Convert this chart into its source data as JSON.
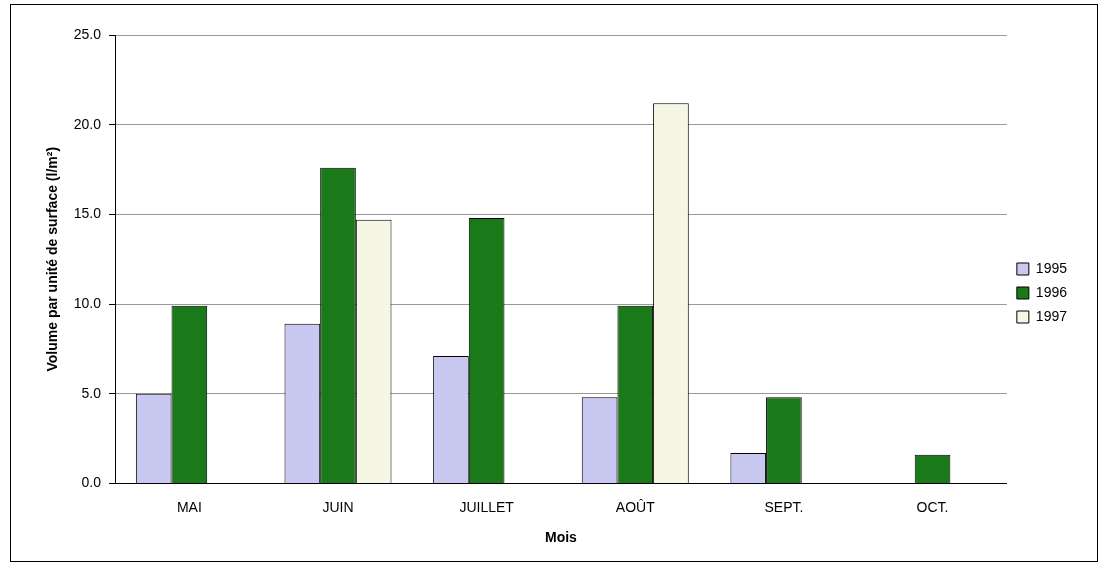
{
  "chart_data": {
    "type": "bar",
    "xlabel": "Mois",
    "ylabel": "Volume par unité de surface (l/m²)",
    "categories": [
      "MAI",
      "JUIN",
      "JUILLET",
      "AOÛT",
      "SEPT.",
      "OCT."
    ],
    "series": [
      {
        "name": "1995",
        "color": "#c8c8f0",
        "values": [
          5.0,
          8.9,
          7.1,
          4.8,
          1.7,
          null
        ]
      },
      {
        "name": "1996",
        "color": "#1a7a1a",
        "values": [
          9.9,
          17.6,
          14.8,
          9.9,
          4.8,
          1.6
        ]
      },
      {
        "name": "1997",
        "color": "#f6f6e4",
        "values": [
          null,
          14.7,
          null,
          21.2,
          null,
          null
        ]
      }
    ],
    "ylim": [
      0,
      25
    ],
    "yticks": [
      {
        "value": 0,
        "label": "0.0"
      },
      {
        "value": 5,
        "label": "5.0"
      },
      {
        "value": 10,
        "label": "10.0"
      },
      {
        "value": 15,
        "label": "15.0"
      },
      {
        "value": 20,
        "label": "20.0"
      },
      {
        "value": 25,
        "label": "25.0"
      }
    ],
    "grid": "y",
    "legend": "right"
  }
}
